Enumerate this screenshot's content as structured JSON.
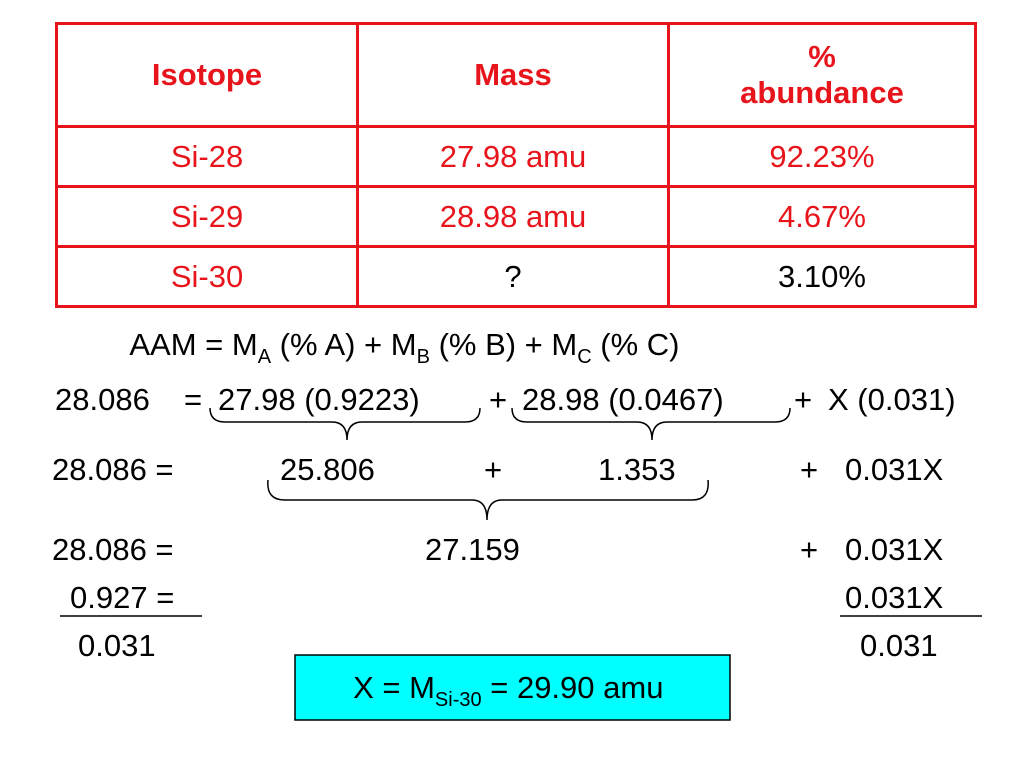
{
  "table": {
    "headers": [
      "Isotope",
      "Mass",
      "% abundance"
    ],
    "rows": [
      [
        "Si-28",
        "27.98 amu",
        "92.23%"
      ],
      [
        "Si-29",
        "28.98 amu",
        "4.67%"
      ],
      [
        "Si-30",
        "?",
        "3.10%"
      ]
    ]
  },
  "equations": {
    "formula": [
      "AAM = M",
      "A",
      " (% A) + M",
      "B",
      " (% B) + M",
      "C",
      " (% C)"
    ],
    "line1": [
      "28.086",
      "=",
      "27.98 (0.9223)",
      "+",
      "28.98 (0.0467)",
      "+",
      "X (0.031)"
    ],
    "line2": [
      "28.086 =",
      "25.806",
      "+",
      "1.353",
      "+",
      "0.031X"
    ],
    "line3": [
      "28.086 =",
      "27.159",
      "+",
      "0.031X"
    ],
    "line4": [
      "0.927 =",
      "0.031X"
    ],
    "line5": [
      "0.031",
      "0.031"
    ],
    "result": [
      "X = M",
      "Si-30",
      " = 29.90 amu"
    ]
  }
}
